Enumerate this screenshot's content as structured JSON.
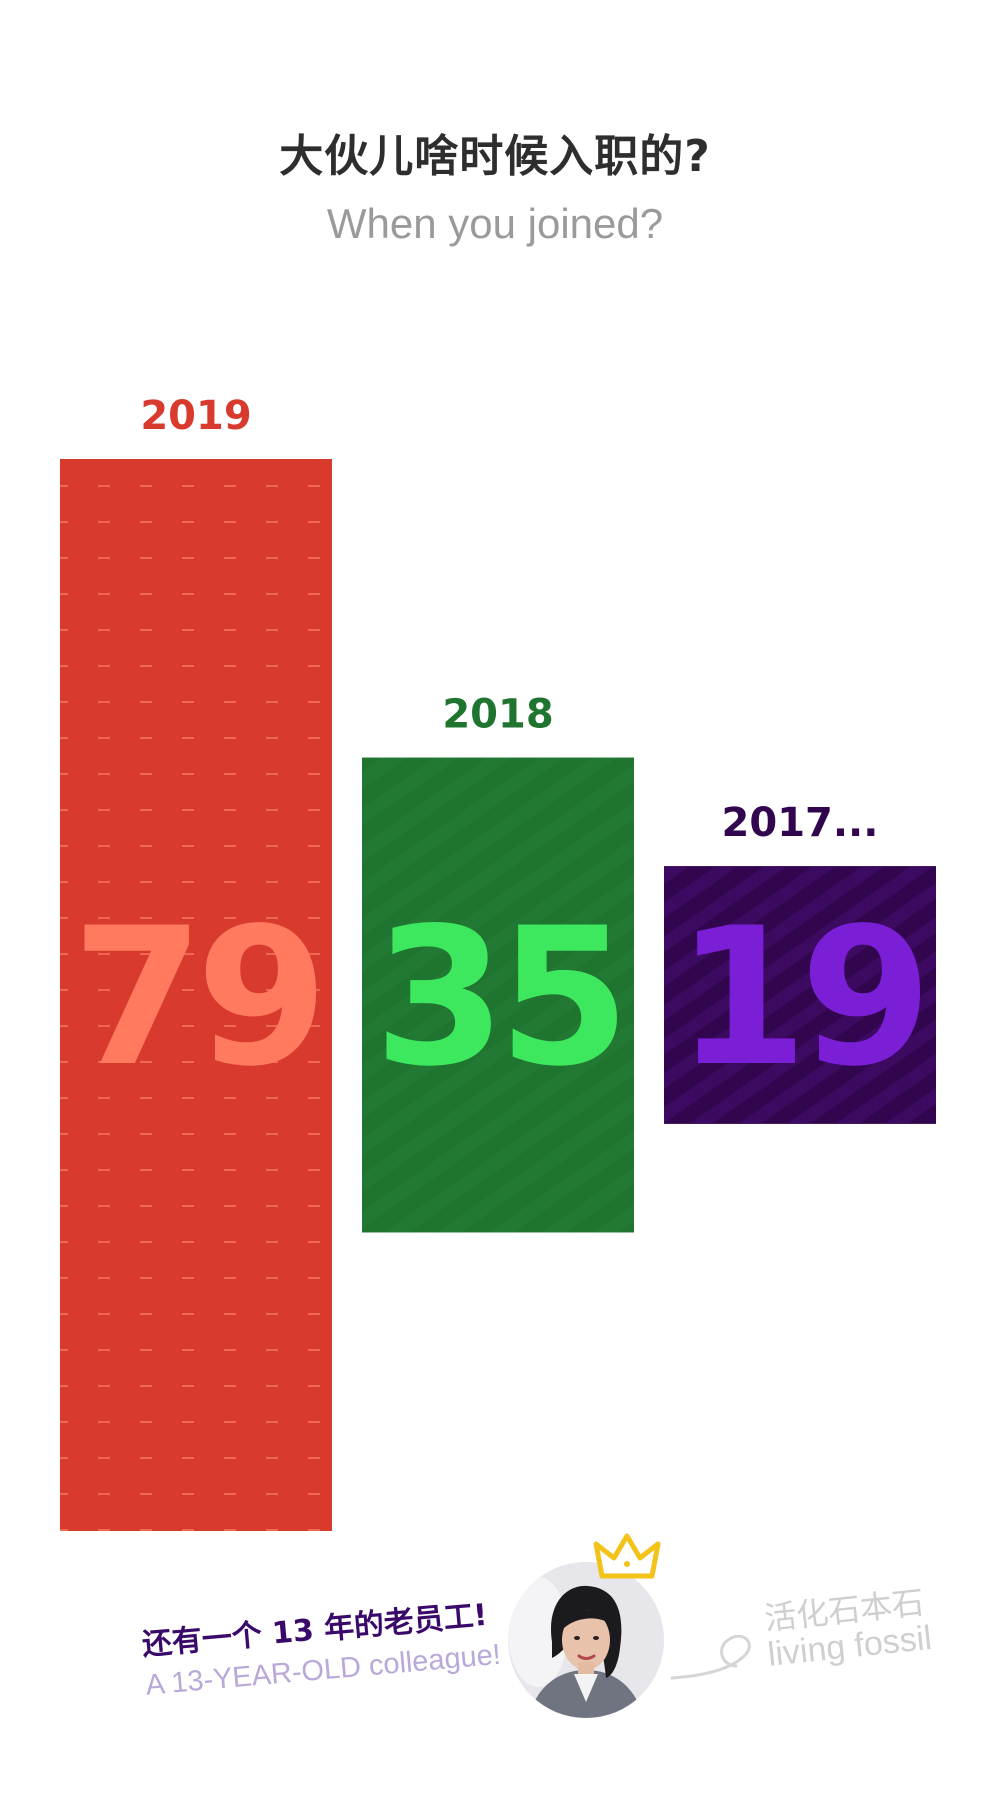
{
  "header": {
    "title_cn": "大伙儿啥时候入职的?",
    "title_en": "When you joined?"
  },
  "chart_data": {
    "type": "bar",
    "categories": [
      "2019",
      "2018",
      "2017..."
    ],
    "values": [
      79,
      35,
      19
    ],
    "colors": {
      "bars": [
        "#d93a2e",
        "#1f7530",
        "#32054f"
      ],
      "labels": [
        "#d93a2e",
        "#1f7530",
        "#32054f"
      ],
      "values": [
        "#ff7a5e",
        "#3ee85e",
        "#7a1fd6"
      ],
      "patterns": [
        "#ff8e6e",
        "#2e8b40",
        "#4a0f75"
      ]
    },
    "title": "大伙儿啥时候入职的?",
    "xlabel": "",
    "ylabel": "",
    "grid": false,
    "legend": "none"
  },
  "footer": {
    "note_cn": "还有一个 13 年的老员工!",
    "note_en": "A 13-YEAR-OLD colleague!",
    "brand_cn": "活化石本石",
    "brand_en": "living fossil",
    "avatar_icon": "avatar-photo",
    "crown_icon": "crown-icon",
    "brand_colors": {
      "note_cn": "#3a0a6a",
      "note_en": "#b9a8d8",
      "crown": "#f3c319",
      "brand": "#cfcfcf"
    }
  }
}
